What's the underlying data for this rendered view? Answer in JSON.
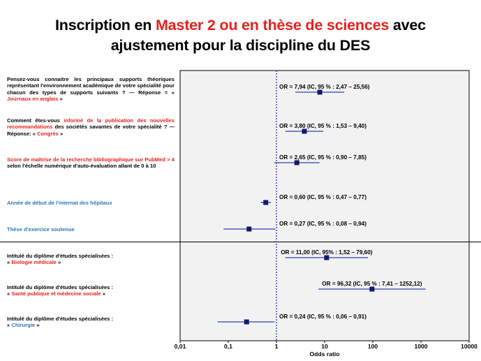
{
  "title": {
    "line1_before": "Inscription en ",
    "line1_red": "Master 2 ou en thèse de sciences",
    "line1_after": " avec",
    "line2": "ajustement pour la discipline du DES"
  },
  "labels": [
    {
      "parts": [
        {
          "text": "Pensez-vous connaitre les principaux supports théoriques représentant l'environnement académique de votre spécialité pour chacun des types de supports suivants ? — Réponse = « ",
          "color": "black"
        },
        {
          "text": "Journaux en anglais",
          "color": "red"
        },
        {
          "text": " »",
          "color": "black"
        }
      ]
    },
    {
      "parts": [
        {
          "text": "Comment êtes-vous ",
          "color": "black"
        },
        {
          "text": "informé de la publication des nouvelles recommandations",
          "color": "red"
        },
        {
          "text": " des sociétés savantes de votre spécialité ? — Réponse: « ",
          "color": "black"
        },
        {
          "text": "Congrès",
          "color": "red"
        },
        {
          "text": " »",
          "color": "black"
        }
      ]
    },
    {
      "parts": [
        {
          "text": "Score de maîtrise de la recherche bibliographique sur PubMed > 4",
          "color": "red"
        },
        {
          "text": " selon l'échelle numérique d'auto-évaluation allant de 0 à 10",
          "color": "black"
        }
      ]
    },
    {
      "parts": [
        {
          "text": "Année de début de l'internat des hôpitaux",
          "color": "blue"
        }
      ]
    },
    {
      "parts": [
        {
          "text": "Thèse d'exercice soutenue",
          "color": "blue"
        }
      ]
    },
    {
      "parts": [
        {
          "text": "Intitulé du diplôme d'études spécialisées :",
          "color": "black"
        },
        {
          "text": "« ",
          "color": "black",
          "newline": true
        },
        {
          "text": "Biologie médicale",
          "color": "red"
        },
        {
          "text": " »",
          "color": "black"
        }
      ]
    },
    {
      "parts": [
        {
          "text": "Intitulé du diplôme d'études spécialisées :",
          "color": "black"
        },
        {
          "text": "« ",
          "color": "black",
          "newline": true
        },
        {
          "text": "Santé publique et médecine sociale",
          "color": "red"
        },
        {
          "text": " »",
          "color": "black"
        }
      ]
    },
    {
      "parts": [
        {
          "text": "Intitulé du diplôme d'études spécialisées :",
          "color": "black"
        },
        {
          "text": "« ",
          "color": "black",
          "newline": true
        },
        {
          "text": "Chirurgie",
          "color": "blue"
        },
        {
          "text": " »",
          "color": "black"
        }
      ]
    }
  ],
  "chart_data": {
    "type": "forest",
    "xscale": "log",
    "xlim": [
      0.01,
      10000
    ],
    "xticks": [
      0.01,
      0.1,
      1,
      10,
      100,
      1000,
      10000
    ],
    "xtick_labels": [
      "0,01",
      "0,1",
      "1",
      "10",
      "100",
      "1000",
      "10000"
    ],
    "xlabel": "Odds ratio",
    "reference_line": 1,
    "group_separator_after_row": 5,
    "rows": [
      {
        "or": 7.94,
        "lo": 2.47,
        "hi": 25.56,
        "label": "OR = 7,94 (IC, 95 % : 2,47 – 25,56)"
      },
      {
        "or": 3.8,
        "lo": 1.53,
        "hi": 9.4,
        "label": "OR = 3,80 (IC, 95 % : 1,53 – 9,40)"
      },
      {
        "or": 2.65,
        "lo": 0.9,
        "hi": 7.85,
        "label": "OR = 2,65 (IC, 95 % : 0,90 – 7,85)"
      },
      {
        "or": 0.6,
        "lo": 0.47,
        "hi": 0.77,
        "label": "OR = 0,60 (IC, 95 % : 0,47 – 0,77)"
      },
      {
        "or": 0.27,
        "lo": 0.08,
        "hi": 0.94,
        "label": "OR = 0,27 (IC, 95 % : 0,08 – 0,94)"
      },
      {
        "or": 11.0,
        "lo": 1.52,
        "hi": 79.6,
        "label": "OR = 11,00 (IC, 95% : 1,52 – 79,60)"
      },
      {
        "or": 96.32,
        "lo": 7.41,
        "hi": 1252.12,
        "label": "OR = 96,32 (IC, 95 % : 7,41 – 1252,12)"
      },
      {
        "or": 0.24,
        "lo": 0.06,
        "hi": 0.91,
        "label": "OR = 0,24 (IC, 95 % : 0,06 – 0,91)"
      }
    ],
    "colors": {
      "marker": "#0e1a6e",
      "ci_line": "#2f3fb0",
      "reference": "#2a3aa6",
      "panel": "#f2f2f2",
      "red_text": "#e8201b",
      "blue_text": "#2e75b6"
    }
  }
}
